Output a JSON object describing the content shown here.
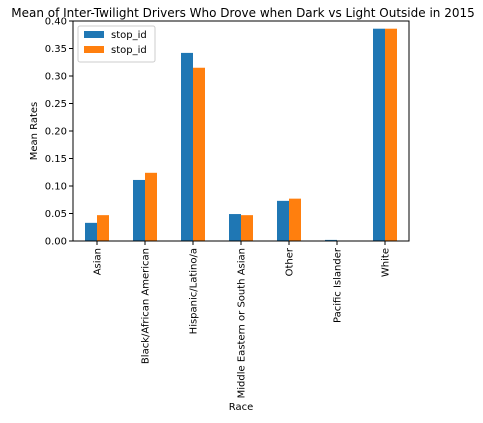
{
  "chart_data": {
    "type": "bar",
    "title": "Mean of Inter-Twilight Drivers Who Drove when Dark vs Light Outside in 2015",
    "xlabel": "Race",
    "ylabel": "Mean Rates",
    "ylim": [
      0,
      0.4
    ],
    "yticks": [
      "0.00",
      "0.05",
      "0.10",
      "0.15",
      "0.20",
      "0.25",
      "0.30",
      "0.35",
      "0.40"
    ],
    "categories": [
      "Asian",
      "Black/African American",
      "Hispanic/Latino/a",
      "Middle Eastern or South Asian",
      "Other",
      "Pacific Islander",
      "White"
    ],
    "series": [
      {
        "name": "stop_id",
        "color": "#1f77b4",
        "values": [
          0.033,
          0.111,
          0.342,
          0.049,
          0.073,
          0.002,
          0.386
        ]
      },
      {
        "name": "stop_id",
        "color": "#ff7f0e",
        "values": [
          0.047,
          0.124,
          0.315,
          0.047,
          0.077,
          0.0,
          0.386
        ]
      }
    ],
    "legend_position": "upper-left",
    "grid": false
  }
}
